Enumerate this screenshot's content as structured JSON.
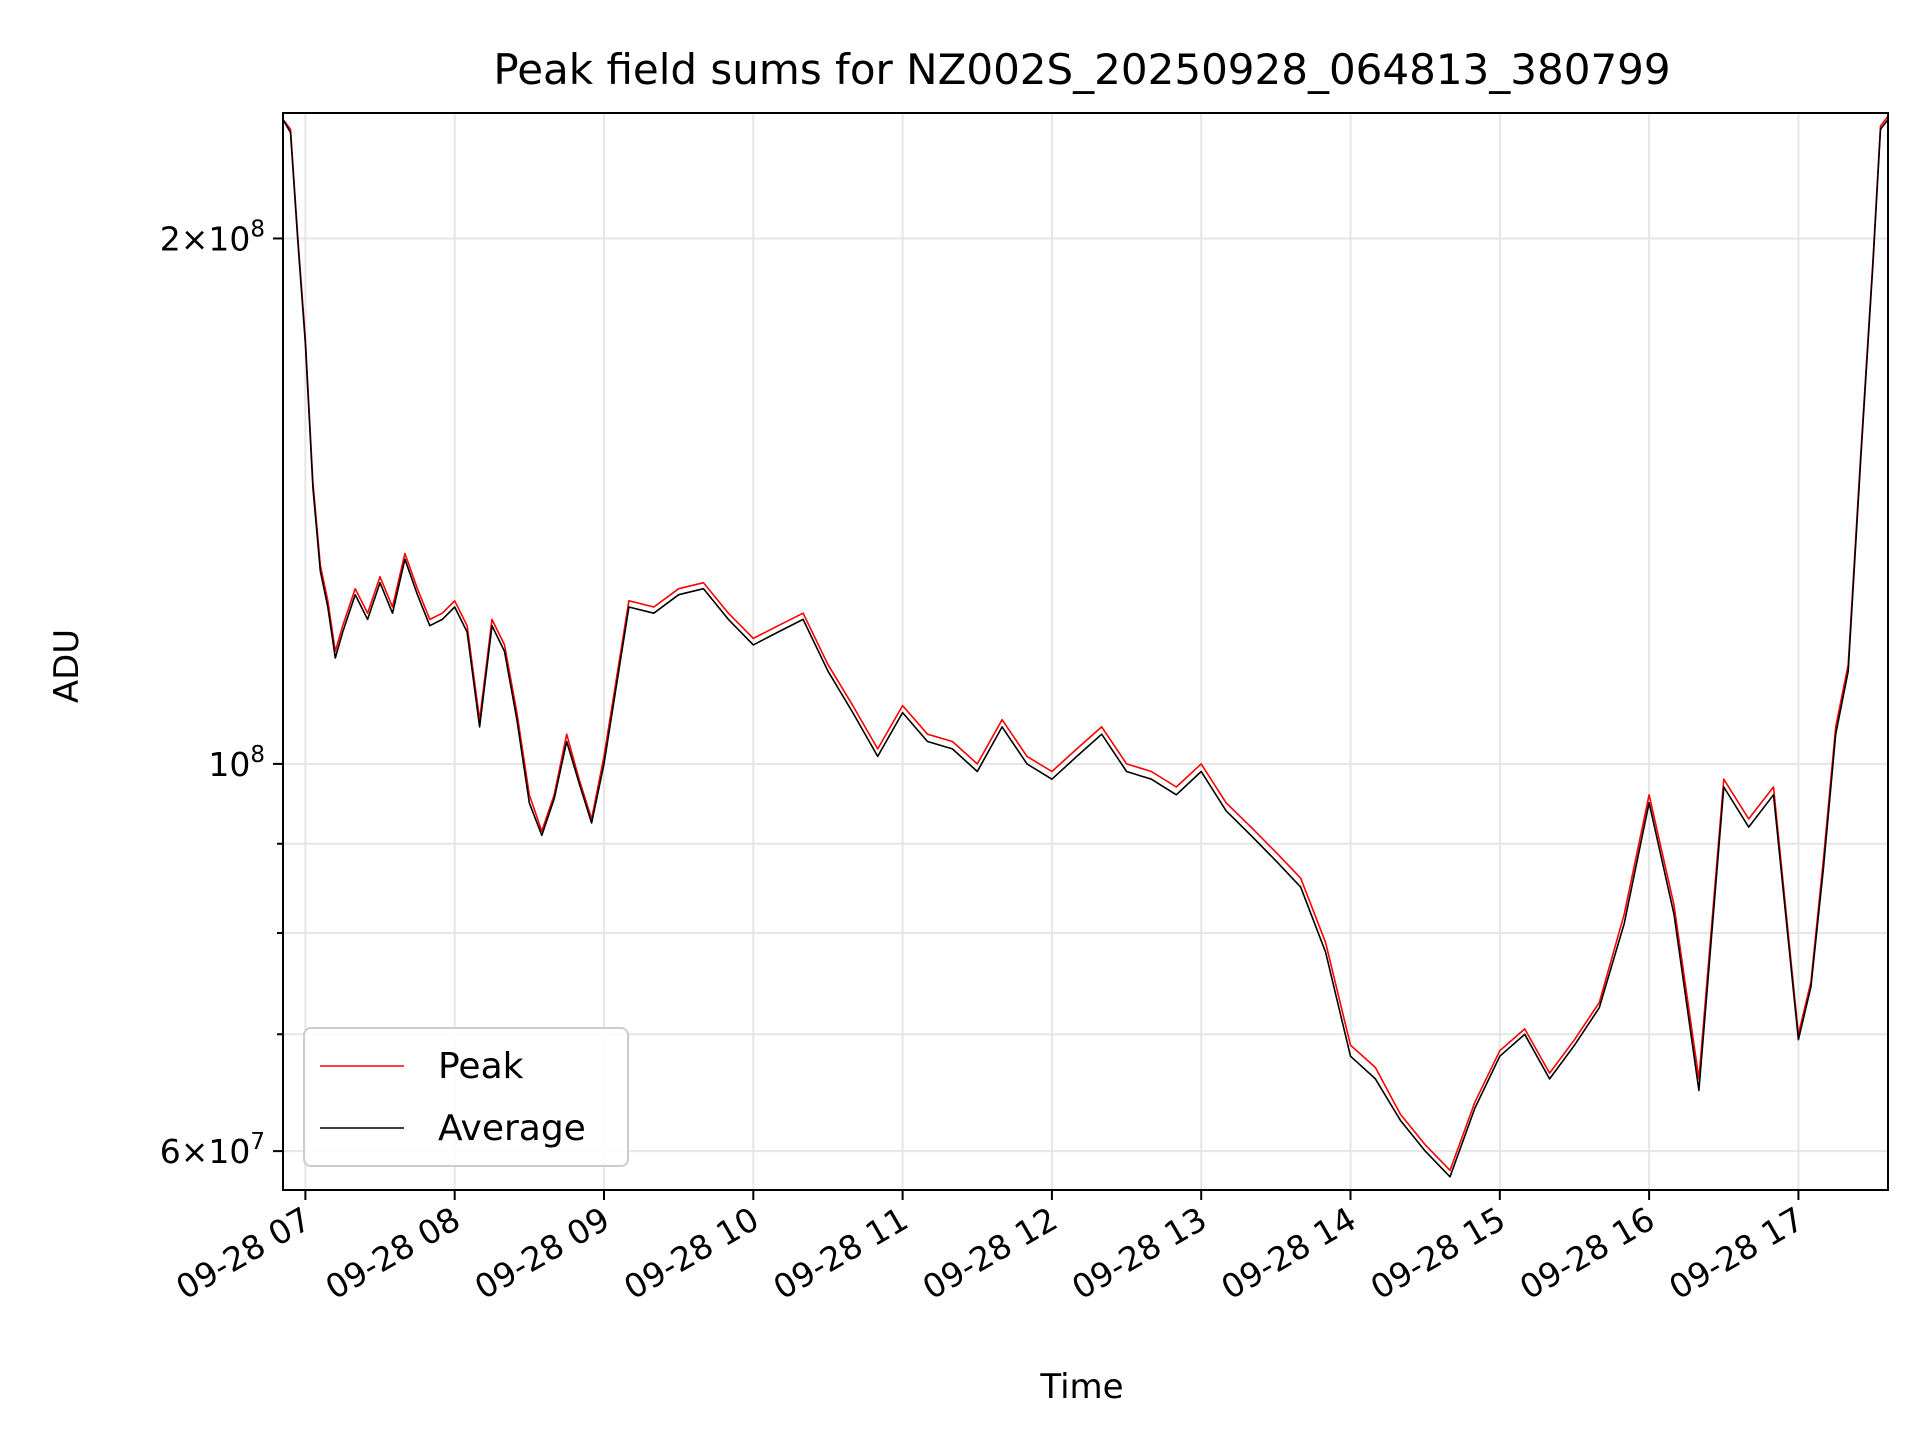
{
  "chart_data": {
    "type": "line",
    "title": "Peak field sums for NZ002S_20250928_064813_380799",
    "xlabel": "Time",
    "ylabel": "ADU",
    "yscale": "log",
    "ylim": [
      57000000,
      236000000
    ],
    "xlim": [
      "2025-09-28 06:51",
      "2025-09-28 17:36"
    ],
    "grid": true,
    "legend": "lower left",
    "x_ticks": [
      "2025-09-28 07:00",
      "2025-09-28 08:00",
      "2025-09-28 09:00",
      "2025-09-28 10:00",
      "2025-09-28 11:00",
      "2025-09-28 12:00",
      "2025-09-28 13:00",
      "2025-09-28 14:00",
      "2025-09-28 15:00",
      "2025-09-28 16:00",
      "2025-09-28 17:00"
    ],
    "x_tick_labels": [
      "09-28 07",
      "09-28 08",
      "09-28 09",
      "09-28 10",
      "09-28 11",
      "09-28 12",
      "09-28 13",
      "09-28 14",
      "09-28 15",
      "09-28 16",
      "09-28 17"
    ],
    "y_major_ticks": [
      {
        "value": 60000000,
        "mantissa": "6",
        "exponent": "7"
      },
      {
        "value": 100000000,
        "mantissa": "",
        "exponent": "8"
      },
      {
        "value": 200000000,
        "mantissa": "2",
        "exponent": "8"
      }
    ],
    "y_minor_ticks": [
      70000000,
      80000000,
      90000000
    ],
    "x": [
      "2025-09-28 06:51",
      "2025-09-28 06:54",
      "2025-09-28 06:57",
      "2025-09-28 07:00",
      "2025-09-28 07:03",
      "2025-09-28 07:06",
      "2025-09-28 07:09",
      "2025-09-28 07:12",
      "2025-09-28 07:15",
      "2025-09-28 07:20",
      "2025-09-28 07:25",
      "2025-09-28 07:30",
      "2025-09-28 07:35",
      "2025-09-28 07:40",
      "2025-09-28 07:45",
      "2025-09-28 07:50",
      "2025-09-28 07:55",
      "2025-09-28 08:00",
      "2025-09-28 08:05",
      "2025-09-28 08:10",
      "2025-09-28 08:15",
      "2025-09-28 08:20",
      "2025-09-28 08:25",
      "2025-09-28 08:30",
      "2025-09-28 08:35",
      "2025-09-28 08:40",
      "2025-09-28 08:45",
      "2025-09-28 08:50",
      "2025-09-28 08:55",
      "2025-09-28 09:00",
      "2025-09-28 09:10",
      "2025-09-28 09:20",
      "2025-09-28 09:30",
      "2025-09-28 09:40",
      "2025-09-28 09:50",
      "2025-09-28 10:00",
      "2025-09-28 10:10",
      "2025-09-28 10:20",
      "2025-09-28 10:30",
      "2025-09-28 10:40",
      "2025-09-28 10:50",
      "2025-09-28 11:00",
      "2025-09-28 11:10",
      "2025-09-28 11:20",
      "2025-09-28 11:30",
      "2025-09-28 11:40",
      "2025-09-28 11:50",
      "2025-09-28 12:00",
      "2025-09-28 12:10",
      "2025-09-28 12:20",
      "2025-09-28 12:30",
      "2025-09-28 12:40",
      "2025-09-28 12:50",
      "2025-09-28 13:00",
      "2025-09-28 13:10",
      "2025-09-28 13:20",
      "2025-09-28 13:30",
      "2025-09-28 13:40",
      "2025-09-28 13:50",
      "2025-09-28 14:00",
      "2025-09-28 14:10",
      "2025-09-28 14:20",
      "2025-09-28 14:30",
      "2025-09-28 14:40",
      "2025-09-28 14:50",
      "2025-09-28 15:00",
      "2025-09-28 15:10",
      "2025-09-28 15:20",
      "2025-09-28 15:30",
      "2025-09-28 15:40",
      "2025-09-28 15:50",
      "2025-09-28 16:00",
      "2025-09-28 16:10",
      "2025-09-28 16:20",
      "2025-09-28 16:30",
      "2025-09-28 16:40",
      "2025-09-28 16:50",
      "2025-09-28 17:00",
      "2025-09-28 17:05",
      "2025-09-28 17:10",
      "2025-09-28 17:15",
      "2025-09-28 17:20",
      "2025-09-28 17:25",
      "2025-09-28 17:30",
      "2025-09-28 17:33",
      "2025-09-28 17:36"
    ],
    "series": [
      {
        "name": "Peak",
        "color": "#ff0000",
        "values": [
          234000000,
          231000000,
          200000000,
          175000000,
          145000000,
          130000000,
          124000000,
          116000000,
          120000000,
          126000000,
          122000000,
          128000000,
          123000000,
          132000000,
          126000000,
          121000000,
          122000000,
          124000000,
          120000000,
          106000000,
          121000000,
          117000000,
          107000000,
          96000000,
          91500000,
          96000000,
          104000000,
          98000000,
          93000000,
          101000000,
          124000000,
          123000000,
          126000000,
          127000000,
          122000000,
          118000000,
          120000000,
          122000000,
          114000000,
          108000000,
          102000000,
          108000000,
          104000000,
          103000000,
          100000000,
          106000000,
          101000000,
          99000000,
          102000000,
          105000000,
          100000000,
          99000000,
          97000000,
          100000000,
          95000000,
          92000000,
          89000000,
          86000000,
          79000000,
          69000000,
          67000000,
          63000000,
          60500000,
          58500000,
          64000000,
          68500000,
          70500000,
          66500000,
          69500000,
          73000000,
          82000000,
          96000000,
          83000000,
          66000000,
          98000000,
          93000000,
          97000000,
          70000000,
          75000000,
          88000000,
          105000000,
          114000000,
          150000000,
          195000000,
          232000000,
          235000000
        ]
      },
      {
        "name": "Average",
        "color": "#000000",
        "values": [
          234000000,
          230000000,
          199000000,
          174000000,
          144000000,
          129000000,
          123000000,
          115000000,
          119000000,
          125000000,
          121000000,
          127000000,
          122000000,
          131000000,
          125000000,
          120000000,
          121000000,
          123000000,
          119000000,
          105000000,
          120000000,
          116000000,
          106000000,
          95000000,
          91000000,
          95500000,
          103000000,
          97500000,
          92500000,
          100000000,
          123000000,
          122000000,
          125000000,
          126000000,
          121000000,
          117000000,
          119000000,
          121000000,
          113000000,
          107000000,
          101000000,
          107000000,
          103000000,
          102000000,
          99000000,
          105000000,
          100000000,
          98000000,
          101000000,
          104000000,
          99000000,
          98000000,
          96000000,
          99000000,
          94000000,
          91000000,
          88000000,
          85000000,
          78000000,
          68000000,
          66000000,
          62500000,
          60000000,
          58000000,
          63500000,
          68000000,
          70000000,
          66000000,
          69000000,
          72500000,
          81000000,
          95000000,
          82000000,
          65000000,
          97000000,
          92000000,
          96000000,
          69500000,
          74500000,
          87000000,
          104000000,
          113000000,
          149000000,
          194000000,
          231000000,
          234000000
        ]
      }
    ]
  }
}
